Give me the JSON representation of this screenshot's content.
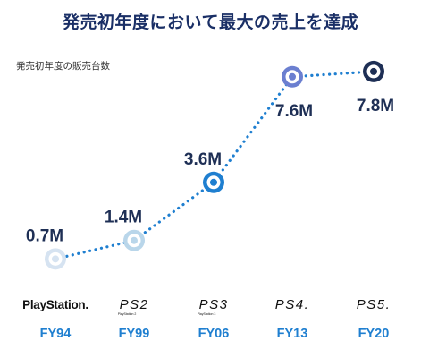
{
  "title": "発売初年度において最大の売上を達成",
  "subtitle": "発売初年度の販売台数",
  "chart_data": {
    "type": "line",
    "title": "発売初年度において最大の売上を達成",
    "ylabel": "発売初年度の販売台数",
    "categories": [
      "FY94",
      "FY99",
      "FY06",
      "FY13",
      "FY20"
    ],
    "series": [
      {
        "values": [
          0.7,
          1.4,
          3.6,
          7.6,
          7.8
        ]
      }
    ],
    "value_labels": [
      "0.7M",
      "1.4M",
      "3.6M",
      "7.6M",
      "7.8M"
    ],
    "products": [
      "PlayStation.",
      "PS2",
      "PS3",
      "PS4.",
      "PS5."
    ],
    "product_sublabels": [
      "",
      "PlayStation 2",
      "PlayStation 3",
      "",
      ""
    ],
    "line_style": "dotted",
    "marker_colors": [
      "#d6e3f1",
      "#b9d6ea",
      "#1f7fd0",
      "#6b7fd0",
      "#1e2f55"
    ],
    "line_color": "#1f7fd0",
    "grid": false
  }
}
